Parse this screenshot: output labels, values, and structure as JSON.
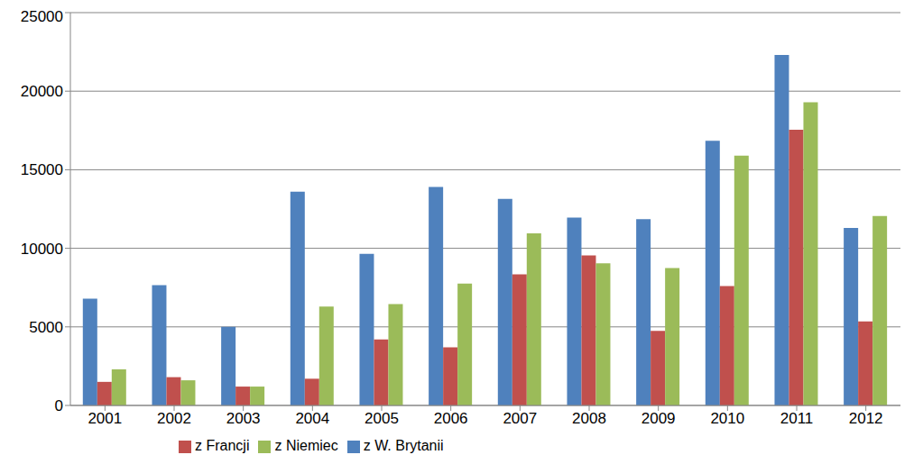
{
  "chart_data": {
    "type": "bar",
    "categories": [
      "2001",
      "2002",
      "2003",
      "2004",
      "2005",
      "2006",
      "2007",
      "2008",
      "2009",
      "2010",
      "2011",
      "2012"
    ],
    "series": [
      {
        "name": "z W. Brytanii",
        "color": "#4f81bd",
        "values": [
          6800,
          7650,
          5000,
          13600,
          9650,
          13900,
          13150,
          11950,
          11850,
          16850,
          22300,
          11300
        ]
      },
      {
        "name": "z Francji",
        "color": "#c0504d",
        "values": [
          1500,
          1800,
          1200,
          1700,
          4200,
          3700,
          8350,
          9550,
          4750,
          7600,
          17550,
          5350
        ]
      },
      {
        "name": "z Niemiec",
        "color": "#9bbb59",
        "values": [
          2300,
          1600,
          1200,
          6300,
          6450,
          7750,
          10950,
          9050,
          8750,
          15900,
          19300,
          12050
        ]
      }
    ],
    "ylim": [
      0,
      25000
    ],
    "yticks": [
      0,
      5000,
      10000,
      15000,
      20000,
      25000
    ],
    "grid": true,
    "legend": "bottom"
  }
}
